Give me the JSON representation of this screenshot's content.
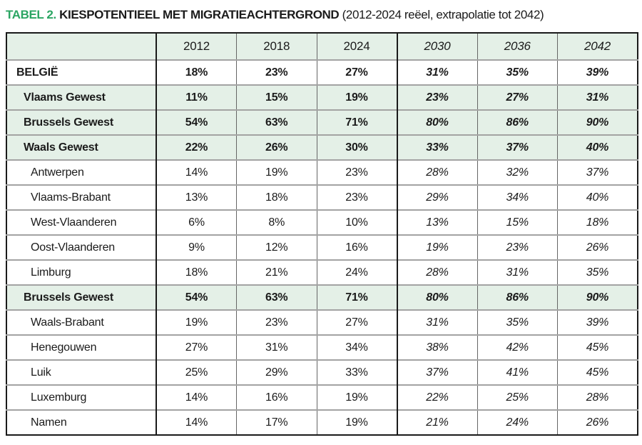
{
  "title": {
    "tag": "TABEL 2.",
    "main": "KIESPOTENTIEEL MET MIGRATIEACHTERGROND",
    "subtitle": "(2012-2024 reëel, extrapolatie tot 2042)"
  },
  "colors": {
    "accent_green": "#2ba563",
    "row_green": "#e4f0e7",
    "border_dark": "#1a1a1a",
    "border_gray": "#a3a3a3",
    "grid_gray": "#666666",
    "text": "#1b1b1b"
  },
  "chart_data": {
    "type": "table",
    "title": "TABEL 2. KIESPOTENTIEEL MET MIGRATIEACHTERGROND (2012-2024 reëel, extrapolatie tot 2042)",
    "columns": [
      "",
      "2012",
      "2018",
      "2024",
      "2030",
      "2036",
      "2042"
    ],
    "real_columns": [
      "2012",
      "2018",
      "2024"
    ],
    "extrapolated_columns": [
      "2030",
      "2036",
      "2042"
    ],
    "legend_note": "2030/2036/2042 values are italic (extrapolated); bold rows are country/region aggregates on green background",
    "rows": [
      {
        "label": "BELGIË",
        "level": "country",
        "emphasis": true,
        "values": [
          "18%",
          "23%",
          "27%",
          "31%",
          "35%",
          "39%"
        ]
      },
      {
        "label": "Vlaams Gewest",
        "level": "region",
        "emphasis": true,
        "values": [
          "11%",
          "15%",
          "19%",
          "23%",
          "27%",
          "31%"
        ]
      },
      {
        "label": "Brussels Gewest",
        "level": "region",
        "emphasis": true,
        "values": [
          "54%",
          "63%",
          "71%",
          "80%",
          "86%",
          "90%"
        ]
      },
      {
        "label": "Waals Gewest",
        "level": "region",
        "emphasis": true,
        "values": [
          "22%",
          "26%",
          "30%",
          "33%",
          "37%",
          "40%"
        ]
      },
      {
        "label": "Antwerpen",
        "level": "province",
        "emphasis": false,
        "values": [
          "14%",
          "19%",
          "23%",
          "28%",
          "32%",
          "37%"
        ]
      },
      {
        "label": "Vlaams-Brabant",
        "level": "province",
        "emphasis": false,
        "values": [
          "13%",
          "18%",
          "23%",
          "29%",
          "34%",
          "40%"
        ]
      },
      {
        "label": "West-Vlaanderen",
        "level": "province",
        "emphasis": false,
        "values": [
          "6%",
          "8%",
          "10%",
          "13%",
          "15%",
          "18%"
        ]
      },
      {
        "label": "Oost-Vlaanderen",
        "level": "province",
        "emphasis": false,
        "values": [
          "9%",
          "12%",
          "16%",
          "19%",
          "23%",
          "26%"
        ]
      },
      {
        "label": "Limburg",
        "level": "province",
        "emphasis": false,
        "values": [
          "18%",
          "21%",
          "24%",
          "28%",
          "31%",
          "35%"
        ]
      },
      {
        "label": "Brussels Gewest",
        "level": "region",
        "emphasis": true,
        "values": [
          "54%",
          "63%",
          "71%",
          "80%",
          "86%",
          "90%"
        ]
      },
      {
        "label": "Waals-Brabant",
        "level": "province",
        "emphasis": false,
        "values": [
          "19%",
          "23%",
          "27%",
          "31%",
          "35%",
          "39%"
        ]
      },
      {
        "label": "Henegouwen",
        "level": "province",
        "emphasis": false,
        "values": [
          "27%",
          "31%",
          "34%",
          "38%",
          "42%",
          "45%"
        ]
      },
      {
        "label": "Luik",
        "level": "province",
        "emphasis": false,
        "values": [
          "25%",
          "29%",
          "33%",
          "37%",
          "41%",
          "45%"
        ]
      },
      {
        "label": "Luxemburg",
        "level": "province",
        "emphasis": false,
        "values": [
          "14%",
          "16%",
          "19%",
          "22%",
          "25%",
          "28%"
        ]
      },
      {
        "label": "Namen",
        "level": "province",
        "emphasis": false,
        "values": [
          "14%",
          "17%",
          "19%",
          "21%",
          "24%",
          "26%"
        ]
      }
    ]
  }
}
